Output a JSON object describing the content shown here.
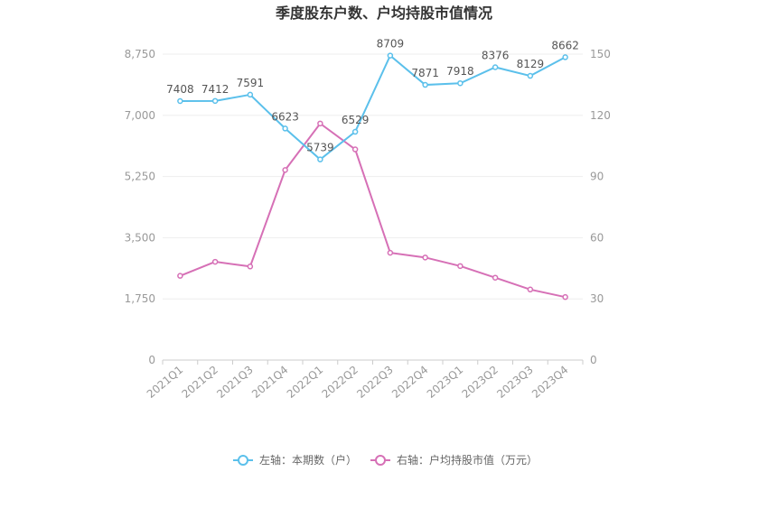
{
  "chart_data": {
    "type": "line",
    "title": "季度股东户数、户均持股市值情况",
    "categories": [
      "2021Q1",
      "2021Q2",
      "2021Q3",
      "2021Q4",
      "2022Q1",
      "2022Q2",
      "2022Q3",
      "2022Q4",
      "2023Q1",
      "2023Q2",
      "2023Q3",
      "2023Q4"
    ],
    "series": [
      {
        "name": "左轴：本期数（户）",
        "axis": "left",
        "color": "#5bc0eb",
        "values": [
          7408,
          7412,
          7591,
          6623,
          5739,
          6529,
          8709,
          7871,
          7918,
          8376,
          8129,
          8662
        ],
        "labels": [
          "7408",
          "7412",
          "7591",
          "6623",
          "5739",
          "6529",
          "8709",
          "7871",
          "7918",
          "8376",
          "8129",
          "8662"
        ]
      },
      {
        "name": "右轴：户均持股市值（万元）",
        "axis": "right",
        "color": "#d670b6",
        "values": [
          41.3,
          48.2,
          45.9,
          93.2,
          116.0,
          103.3,
          52.6,
          50.3,
          46.1,
          40.4,
          34.6,
          30.9
        ]
      }
    ],
    "left_axis": {
      "min": 0,
      "max": 8750,
      "ticks": [
        0,
        1750,
        3500,
        5250,
        7000,
        8750
      ],
      "tick_labels": [
        "0",
        "1,750",
        "3,500",
        "5,250",
        "7,000",
        "8,750"
      ]
    },
    "right_axis": {
      "min": 0,
      "max": 150,
      "ticks": [
        0,
        30,
        60,
        90,
        120,
        150
      ],
      "tick_labels": [
        "0",
        "30",
        "60",
        "90",
        "120",
        "150"
      ]
    },
    "grid": true,
    "legend_position": "bottom"
  }
}
